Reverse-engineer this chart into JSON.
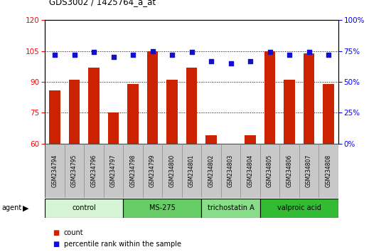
{
  "title": "GDS3002 / 1425764_a_at",
  "samples": [
    "GSM234794",
    "GSM234795",
    "GSM234796",
    "GSM234797",
    "GSM234798",
    "GSM234799",
    "GSM234800",
    "GSM234801",
    "GSM234802",
    "GSM234803",
    "GSM234804",
    "GSM234805",
    "GSM234806",
    "GSM234807",
    "GSM234808"
  ],
  "counts": [
    86,
    91,
    97,
    75,
    89,
    105,
    91,
    97,
    64,
    60,
    64,
    105,
    91,
    104,
    89
  ],
  "percentiles": [
    72,
    72,
    74,
    70,
    72,
    75,
    72,
    74,
    67,
    65,
    67,
    74,
    72,
    74,
    72
  ],
  "groups": [
    {
      "label": "control",
      "start": 0,
      "end": 4,
      "color": "#d6f5d6"
    },
    {
      "label": "MS-275",
      "start": 4,
      "end": 8,
      "color": "#66cc66"
    },
    {
      "label": "trichostatin A",
      "start": 8,
      "end": 11,
      "color": "#88dd88"
    },
    {
      "label": "valproic acid",
      "start": 11,
      "end": 15,
      "color": "#33bb33"
    }
  ],
  "ylim_left": [
    60,
    120
  ],
  "yticks_left": [
    60,
    75,
    90,
    105,
    120
  ],
  "ylim_right": [
    0,
    100
  ],
  "yticks_right": [
    0,
    25,
    50,
    75,
    100
  ],
  "bar_color": "#cc2200",
  "dot_color": "#1111cc",
  "bar_width": 0.55,
  "plot_bg": "#ffffff",
  "xtick_bg": "#c8c8c8",
  "xtick_border": "#888888"
}
